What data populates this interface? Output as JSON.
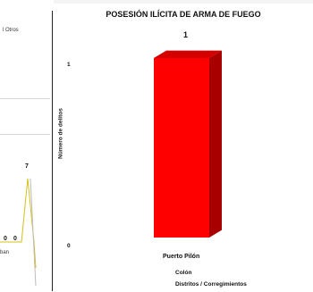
{
  "left_chart": {
    "legend_text": "l Otros",
    "label_top": "7",
    "label_zero_a": "0",
    "label_zero_b": "0",
    "tick_fragment": "ban"
  },
  "chart_data": {
    "type": "bar",
    "title": "POSESIÓN ILÍCITA DE ARMA DE FUEGO",
    "ylabel": "Número de delitos",
    "xlabel": "Distritos / Corregimientos",
    "group_label": "Colón",
    "categories": [
      "Puerto Pilón"
    ],
    "values": [
      1
    ],
    "ylim": [
      0,
      1
    ],
    "yticks": [
      "1",
      "0"
    ],
    "data_labels": [
      "1"
    ],
    "bar_color": "#ff0000",
    "bar_top_color": "#d40000",
    "bar_side_color": "#a80000",
    "grid": false,
    "legend": false
  }
}
